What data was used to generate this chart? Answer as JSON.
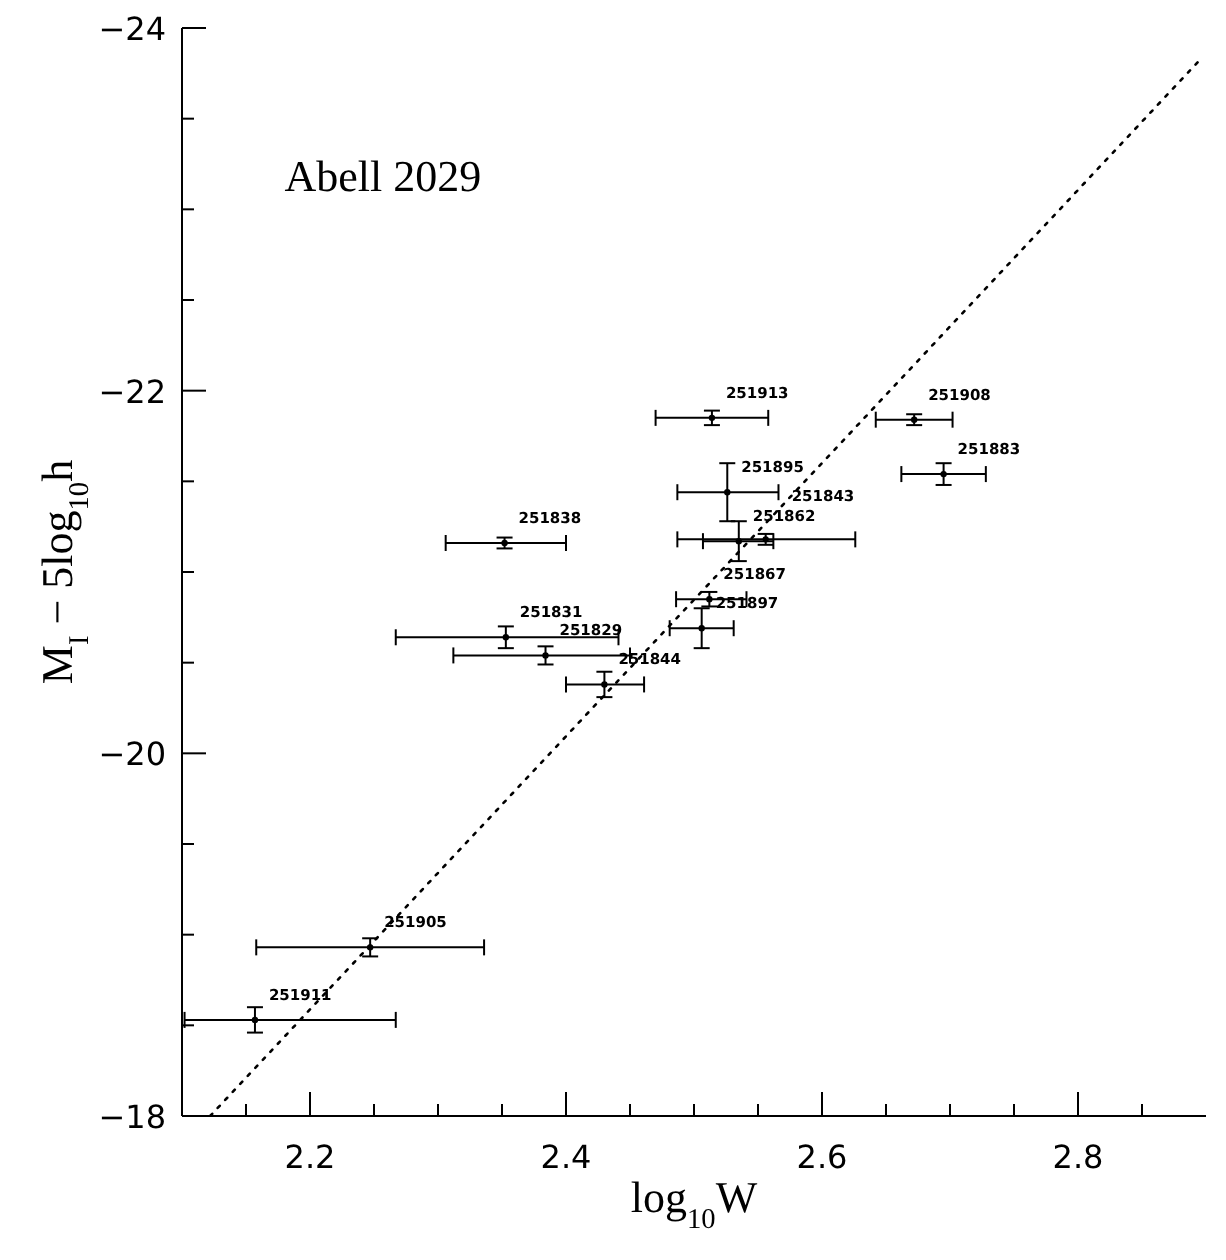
{
  "chart_data": {
    "type": "scatter",
    "xlabel": "log$_{10}$W",
    "ylabel": "M$_{I}$  −  5log$_{10}$h",
    "xlim": [
      2.1,
      2.9
    ],
    "ylim": [
      -18,
      -24
    ],
    "xticks": [
      {
        "value": 2.1,
        "label": null
      },
      {
        "value": 2.15,
        "label": null
      },
      2.2,
      {
        "value": 2.25,
        "label": null
      },
      {
        "value": 2.3,
        "label": null
      },
      {
        "value": 2.35,
        "label": null
      },
      2.4,
      {
        "value": 2.45,
        "label": null
      },
      {
        "value": 2.5,
        "label": null
      },
      {
        "value": 2.55,
        "label": null
      },
      2.6,
      {
        "value": 2.65,
        "label": null
      },
      {
        "value": 2.7,
        "label": null
      },
      {
        "value": 2.75,
        "label": null
      },
      2.8,
      {
        "value": 2.85,
        "label": null
      }
    ],
    "yticks": [
      -18,
      {
        "value": -18.5,
        "label": null
      },
      {
        "value": -19,
        "label": null
      },
      {
        "value": -19.5,
        "label": null
      },
      -20,
      {
        "value": -20.5,
        "label": null
      },
      {
        "value": -21,
        "label": null
      },
      {
        "value": -21.5,
        "label": null
      },
      -22,
      {
        "value": -22.5,
        "label": null
      },
      {
        "value": -23,
        "label": null
      },
      {
        "value": -23.5,
        "label": null
      },
      -24
    ],
    "grid": false,
    "legend": false,
    "series": [
      {
        "color": "#000000",
        "x": [
          2.514,
          2.672,
          2.695,
          2.526,
          2.352,
          2.535,
          2.556,
          2.512,
          2.506,
          2.353,
          2.384,
          2.43,
          2.247,
          2.157
        ],
        "values": [
          -21.85,
          -21.84,
          -21.54,
          -21.44,
          -21.16,
          -21.17,
          -21.18,
          -20.85,
          -20.69,
          -20.64,
          -20.54,
          -20.38,
          -18.93,
          -18.53
        ],
        "errors": [
          0.04,
          0.03,
          0.06,
          0.16,
          0.03,
          0.11,
          0.03,
          0.04,
          0.11,
          0.06,
          0.05,
          0.07,
          0.05,
          0.07
        ],
        "xerrors": [
          [
            2.47,
            2.558
          ],
          [
            2.642,
            2.702
          ],
          [
            2.662,
            2.728
          ],
          [
            2.487,
            2.566
          ],
          [
            2.306,
            2.4
          ],
          [
            2.507,
            2.562
          ],
          [
            2.487,
            2.626
          ],
          [
            2.486,
            2.541
          ],
          [
            2.481,
            2.531
          ],
          [
            2.267,
            2.441
          ],
          [
            2.312,
            2.45
          ],
          [
            2.4,
            2.461
          ],
          [
            2.158,
            2.336
          ],
          [
            2.102,
            2.267
          ]
        ]
      },
      {
        "type": "line",
        "color": "#000000",
        "line_style": "dotted",
        "marker": "none",
        "x": [
          2.122,
          2.896
        ],
        "values": [
          -18,
          -23.83
        ]
      }
    ],
    "annotations": [
      "Abell 2029",
      {
        "text": "251913",
        "x": 2.514,
        "y": -21.85
      },
      {
        "text": "251908",
        "x": 2.672,
        "y": -21.84
      },
      {
        "text": "251883",
        "x": 2.695,
        "y": -21.54
      },
      {
        "text": "251895",
        "x": 2.526,
        "y": -21.44
      },
      {
        "text": "251838",
        "x": 2.352,
        "y": -21.16
      },
      {
        "text": "251862",
        "x": 2.535,
        "y": -21.17
      },
      {
        "text": "251843",
        "x": 2.556,
        "y": -21.18
      },
      {
        "text": "251867",
        "x": 2.512,
        "y": -20.85
      },
      {
        "text": "251897",
        "x": 2.506,
        "y": -20.69
      },
      {
        "text": "251831",
        "x": 2.353,
        "y": -20.64
      },
      {
        "text": "251829",
        "x": 2.384,
        "y": -20.54
      },
      {
        "text": "251844",
        "x": 2.43,
        "y": -20.38
      },
      {
        "text": "251905",
        "x": 2.247,
        "y": -18.93
      },
      {
        "text": "251911",
        "x": 2.157,
        "y": -18.53
      }
    ]
  }
}
